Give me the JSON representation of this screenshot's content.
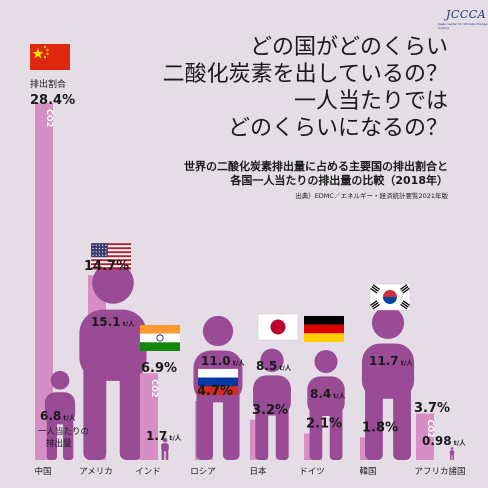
{
  "logo": "JCCCA",
  "logo_sub": "Japan Center for Climate Change Actions",
  "title": [
    "どの国がどのくらい",
    "二酸化炭素を出しているの？",
    "一人当たりでは",
    "どのくらいになるの？"
  ],
  "subtitle": [
    "世界の二酸化炭素排出量に占める主要国の排出割合と",
    "各国一人当たりの排出量の比較（2018年）"
  ],
  "source": "出典）EDMC／エネルギー・経済統計要覧2021年版",
  "labels": {
    "share_label": "排出割合",
    "per_capita_label": "一人当たりの",
    "per_capita_label2": "排出量",
    "unit": "t/人",
    "co2": "CO2"
  },
  "colors": {
    "background": "#e4dde5",
    "bar": "#d68ec5",
    "person": "#9a4b96",
    "text": "#1a1a1a"
  },
  "chart_data": {
    "type": "bar",
    "title": "世界の二酸化炭素排出量に占める主要国の排出割合と各国一人当たりの排出量の比較（2018年）",
    "categories": [
      "中国",
      "アメリカ",
      "インド",
      "ロシア",
      "日本",
      "ドイツ",
      "韓国",
      "アフリカ諸国"
    ],
    "series": [
      {
        "name": "排出割合",
        "unit": "%",
        "values": [
          28.4,
          14.7,
          6.9,
          4.7,
          3.2,
          2.1,
          1.8,
          3.7
        ]
      },
      {
        "name": "一人当たりの排出量",
        "unit": "t/人",
        "values": [
          6.8,
          15.1,
          1.7,
          11.0,
          8.5,
          8.4,
          11.7,
          0.98
        ]
      }
    ],
    "share_labels": [
      "28.4%",
      "14.7%",
      "6.9%",
      "4.7%",
      "3.2%",
      "2.1%",
      "1.8%",
      "3.7%"
    ],
    "per_capita_labels": [
      "6.8",
      "15.1",
      "1.7",
      "11.0",
      "8.5",
      "8.4",
      "11.7",
      "0.98"
    ],
    "flags": [
      "china",
      "usa",
      "india",
      "russia",
      "japan",
      "germany",
      "korea",
      "none"
    ],
    "xlabel": "",
    "ylabel": "",
    "grid": false,
    "legend": "none"
  }
}
